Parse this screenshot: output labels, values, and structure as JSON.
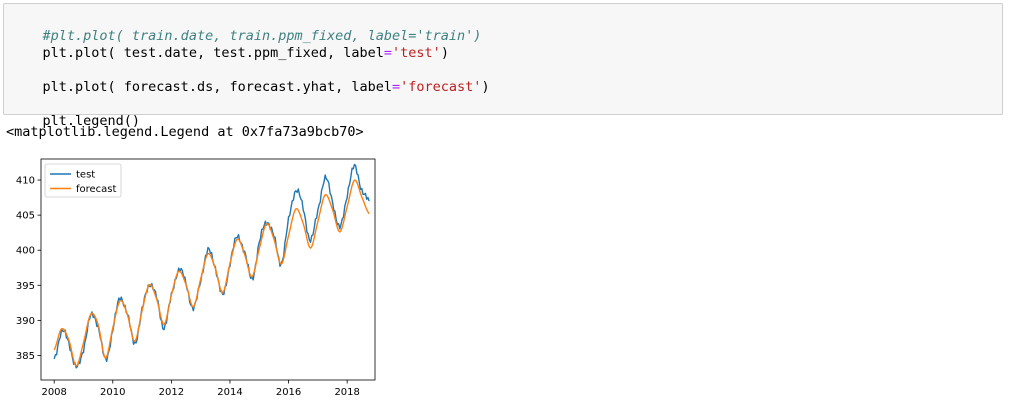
{
  "code_cell": {
    "line1": {
      "comment": "#plt.plot( train.date, train.ppm_fixed, label='train')"
    },
    "line2": {
      "pre": "plt.plot( test.date, test.ppm_fixed, label",
      "op": "=",
      "string": "'test'",
      "post": ")"
    },
    "line3": {
      "pre": "plt.plot( forecast.ds, forecast.yhat, label",
      "op": "=",
      "string": "'forecast'",
      "post": ")"
    },
    "line4": {
      "pre": "plt.legend()"
    }
  },
  "output_text": "<matplotlib.legend.Legend at 0x7fa73a9bcb70>",
  "chart_data": {
    "type": "line",
    "title": "",
    "xlabel": "",
    "ylabel": "",
    "xlim": [
      2007.55,
      2018.95
    ],
    "ylim": [
      381.5,
      413
    ],
    "x_ticks": [
      2008,
      2010,
      2012,
      2014,
      2016,
      2018
    ],
    "y_ticks": [
      385,
      390,
      395,
      400,
      405,
      410
    ],
    "grid": false,
    "legend": "upper left",
    "x_start": 2008.0,
    "x_end": 2018.8,
    "series": [
      {
        "name": "test",
        "color": "#1f77b4",
        "x": [
          2008.0,
          2008.25,
          2008.5,
          2008.75,
          2009.0,
          2009.25,
          2009.5,
          2009.75,
          2010.0,
          2010.25,
          2010.5,
          2010.75,
          2011.0,
          2011.25,
          2011.5,
          2011.75,
          2012.0,
          2012.25,
          2012.5,
          2012.75,
          2013.0,
          2013.25,
          2013.5,
          2013.75,
          2014.0,
          2014.25,
          2014.5,
          2014.75,
          2015.0,
          2015.25,
          2015.5,
          2015.75,
          2016.0,
          2016.25,
          2016.5,
          2016.75,
          2017.0,
          2017.25,
          2017.5,
          2017.75,
          2018.0,
          2018.25,
          2018.5,
          2018.75
        ],
        "values": [
          384.5,
          388.3,
          386.9,
          383.2,
          386.0,
          390.6,
          389.2,
          384.3,
          388.7,
          393.2,
          390.8,
          386.8,
          391.4,
          395.2,
          393.1,
          389.0,
          393.5,
          397.2,
          395.3,
          391.6,
          395.8,
          399.9,
          397.6,
          393.5,
          398.2,
          401.9,
          399.7,
          395.9,
          401.0,
          404.1,
          401.9,
          398.2,
          404.2,
          408.6,
          405.9,
          401.4,
          405.7,
          410.2,
          407.0,
          403.1,
          408.0,
          411.9,
          408.6,
          407.0
        ]
      },
      {
        "name": "forecast",
        "color": "#ff7f0e",
        "x": [
          2008.0,
          2008.25,
          2008.5,
          2008.75,
          2009.0,
          2009.25,
          2009.5,
          2009.75,
          2010.0,
          2010.25,
          2010.5,
          2010.75,
          2011.0,
          2011.25,
          2011.5,
          2011.75,
          2012.0,
          2012.25,
          2012.5,
          2012.75,
          2013.0,
          2013.25,
          2013.5,
          2013.75,
          2014.0,
          2014.25,
          2014.5,
          2014.75,
          2015.0,
          2015.25,
          2015.5,
          2015.75,
          2016.0,
          2016.25,
          2016.5,
          2016.75,
          2017.0,
          2017.25,
          2017.5,
          2017.75,
          2018.0,
          2018.25,
          2018.5,
          2018.75
        ],
        "values": [
          385.8,
          388.8,
          387.2,
          383.5,
          386.8,
          390.9,
          389.4,
          384.6,
          388.9,
          392.8,
          390.8,
          387.0,
          391.4,
          395.1,
          393.0,
          389.4,
          393.6,
          397.0,
          395.1,
          391.9,
          395.9,
          399.5,
          397.4,
          393.9,
          398.1,
          401.6,
          399.4,
          396.2,
          400.2,
          403.8,
          401.6,
          398.0,
          402.1,
          405.9,
          403.8,
          400.3,
          404.1,
          407.9,
          405.8,
          402.6,
          406.2,
          410.0,
          407.6,
          405.2
        ]
      }
    ]
  }
}
